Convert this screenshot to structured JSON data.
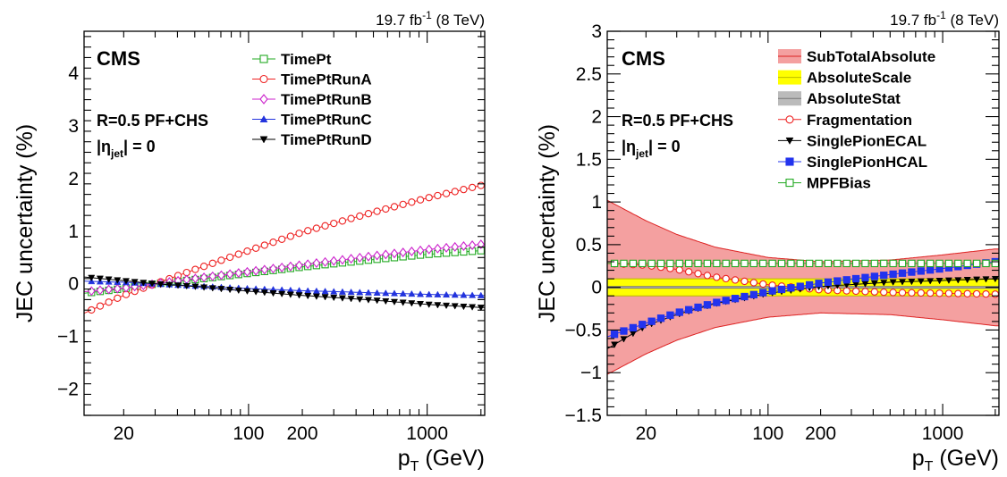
{
  "chart_data": [
    {
      "type": "line",
      "lumi_label": "19.7 fb",
      "lumi_sup": "-1",
      "lumi_energy": " (8 TeV)",
      "experiment": "CMS",
      "jet_label": "R=0.5 PF+CHS",
      "eta_prefix": "|η",
      "eta_sub": "jet",
      "eta_suffix": "| = 0",
      "ylabel": "JEC uncertainty (%)",
      "xlabel_main": "p",
      "xlabel_sub": "T",
      "xlabel_unit": " (GeV)",
      "xscale": "log",
      "xlim": [
        12,
        2100
      ],
      "ylim": [
        -2.5,
        4.8
      ],
      "xticks": [
        20,
        100,
        200,
        1000
      ],
      "yticks": [
        -2,
        -1,
        0,
        1,
        2,
        3,
        4
      ],
      "legend_position": "top-right",
      "series": [
        {
          "name": "TimePt",
          "color": "#22aa22",
          "marker": "open-square",
          "x": [
            12,
            20,
            30,
            50,
            100,
            200,
            500,
            1000,
            2000
          ],
          "y": [
            -0.18,
            -0.09,
            0.0,
            0.08,
            0.2,
            0.32,
            0.46,
            0.56,
            0.63
          ]
        },
        {
          "name": "TimePtRunA",
          "color": "#ee2222",
          "marker": "open-circle",
          "x": [
            12,
            20,
            30,
            50,
            100,
            200,
            500,
            1000,
            2000
          ],
          "y": [
            -0.56,
            -0.22,
            0.0,
            0.27,
            0.63,
            0.98,
            1.36,
            1.63,
            1.87
          ]
        },
        {
          "name": "TimePtRunB",
          "color": "#cc22cc",
          "marker": "open-diamond",
          "x": [
            12,
            20,
            30,
            50,
            100,
            200,
            500,
            1000,
            2000
          ],
          "y": [
            -0.15,
            -0.08,
            0.0,
            0.1,
            0.23,
            0.36,
            0.53,
            0.65,
            0.75
          ]
        },
        {
          "name": "TimePtRunC",
          "color": "#2233dd",
          "marker": "triangle-up",
          "x": [
            12,
            20,
            30,
            50,
            100,
            200,
            500,
            1000,
            2000
          ],
          "y": [
            0.05,
            0.03,
            0.0,
            -0.04,
            -0.09,
            -0.13,
            -0.17,
            -0.2,
            -0.22
          ]
        },
        {
          "name": "TimePtRunD",
          "color": "#000000",
          "marker": "triangle-down",
          "x": [
            12,
            20,
            30,
            50,
            100,
            200,
            500,
            1000,
            2000
          ],
          "y": [
            0.13,
            0.06,
            0.0,
            -0.05,
            -0.14,
            -0.22,
            -0.31,
            -0.39,
            -0.45
          ]
        }
      ]
    },
    {
      "type": "line",
      "lumi_label": "19.7 fb",
      "lumi_sup": "-1",
      "lumi_energy": " (8 TeV)",
      "experiment": "CMS",
      "jet_label": "R=0.5 PF+CHS",
      "eta_prefix": "|η",
      "eta_sub": "jet",
      "eta_suffix": "| = 0",
      "ylabel": "JEC uncertainty (%)",
      "xlabel_main": "p",
      "xlabel_sub": "T",
      "xlabel_unit": " (GeV)",
      "xscale": "log",
      "xlim": [
        12,
        2100
      ],
      "ylim": [
        -1.5,
        3.0
      ],
      "xticks": [
        20,
        100,
        200,
        1000
      ],
      "yticks": [
        -1.5,
        -1,
        -0.5,
        0,
        0.5,
        1,
        1.5,
        2,
        2.5,
        3
      ],
      "ytick_labels": [
        "−1.5",
        "−1",
        "−0.5",
        "0",
        "0.5",
        "1",
        "1.5",
        "2",
        "2.5",
        "3"
      ],
      "legend_position": "top-right",
      "bands": [
        {
          "name": "SubTotalAbsolute",
          "color": "#f4a0a0",
          "edge": "#dd2222",
          "x": [
            12,
            20,
            30,
            50,
            100,
            200,
            500,
            1000,
            2000
          ],
          "upper": [
            1.02,
            0.78,
            0.62,
            0.47,
            0.35,
            0.3,
            0.32,
            0.38,
            0.45
          ],
          "lower": [
            -1.02,
            -0.78,
            -0.62,
            -0.47,
            -0.35,
            -0.3,
            -0.32,
            -0.38,
            -0.45
          ]
        },
        {
          "name": "AbsoluteScale",
          "color": "#ffff00",
          "edge": "#bbbb00",
          "x": [
            12,
            2000
          ],
          "upper": [
            0.1,
            0.1
          ],
          "lower": [
            -0.1,
            -0.1
          ]
        },
        {
          "name": "AbsoluteStat",
          "color": "#bbbbbb",
          "edge": "#777777",
          "x": [
            12,
            2000
          ],
          "upper": [
            0.01,
            0.01
          ],
          "lower": [
            -0.01,
            -0.01
          ]
        }
      ],
      "series": [
        {
          "name": "Fragmentation",
          "color": "#ee2222",
          "marker": "open-circle",
          "x": [
            12,
            20,
            30,
            50,
            100,
            200,
            500,
            1000,
            2000
          ],
          "y": [
            0.28,
            0.26,
            0.21,
            0.12,
            0.03,
            -0.03,
            -0.06,
            -0.07,
            -0.08
          ]
        },
        {
          "name": "SinglePionECAL",
          "color": "#000000",
          "marker": "triangle-down",
          "x": [
            12,
            20,
            30,
            50,
            100,
            200,
            500,
            1000,
            2000
          ],
          "y": [
            -0.72,
            -0.45,
            -0.32,
            -0.19,
            -0.07,
            0.01,
            0.06,
            0.08,
            0.1
          ]
        },
        {
          "name": "SinglePionHCAL",
          "color": "#2233ee",
          "marker": "filled-square",
          "x": [
            12,
            20,
            30,
            50,
            100,
            200,
            500,
            1000,
            2000
          ],
          "y": [
            -0.58,
            -0.42,
            -0.3,
            -0.18,
            -0.05,
            0.05,
            0.15,
            0.22,
            0.3
          ]
        },
        {
          "name": "MPFBias",
          "color": "#22aa22",
          "marker": "open-square",
          "x": [
            12,
            20,
            30,
            50,
            100,
            200,
            500,
            1000,
            2000
          ],
          "y": [
            0.28,
            0.28,
            0.28,
            0.28,
            0.28,
            0.28,
            0.28,
            0.28,
            0.28
          ]
        }
      ]
    }
  ]
}
